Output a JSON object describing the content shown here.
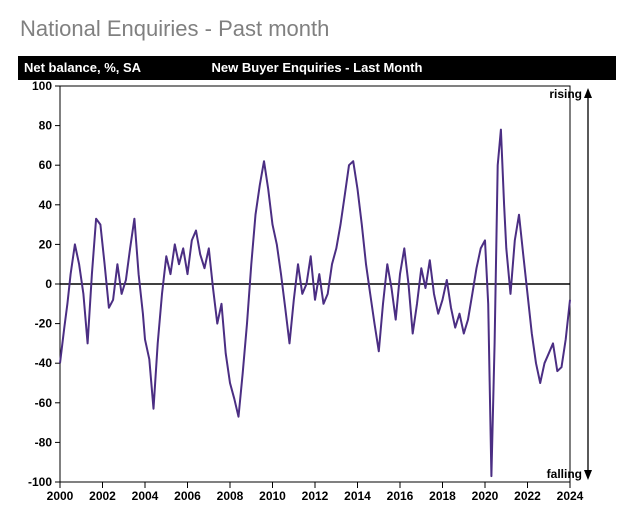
{
  "page_title": "National Enquiries - Past month",
  "chart": {
    "type": "line",
    "title_bar": {
      "left_label": "Net balance, %, SA",
      "center_title": "New Buyer Enquiries - Last Month",
      "bg_color": "#000000",
      "text_color": "#ffffff",
      "fontsize": 13,
      "fontweight": "bold"
    },
    "background_color": "#ffffff",
    "plot_border_color": "#000000",
    "plot_border_width": 1,
    "x": {
      "min": 2000,
      "max": 2024,
      "ticks": [
        2000,
        2002,
        2004,
        2006,
        2008,
        2010,
        2012,
        2014,
        2016,
        2018,
        2020,
        2022,
        2024
      ],
      "label_fontsize": 12,
      "label_fontweight": "bold",
      "tick_color": "#000000",
      "tick_len": 6
    },
    "y": {
      "min": -100,
      "max": 100,
      "ticks": [
        -100,
        -80,
        -60,
        -40,
        -20,
        0,
        20,
        40,
        60,
        80,
        100
      ],
      "label_fontsize": 12,
      "label_fontweight": "bold",
      "zero_line_color": "#000000",
      "zero_line_width": 1.5
    },
    "right_axis": {
      "top_label": "rising",
      "bottom_label": "falling",
      "arrow_color": "#000000",
      "label_fontsize": 12
    },
    "series": {
      "color": "#4b2e83",
      "width": 2,
      "points": [
        [
          2000.0,
          -40
        ],
        [
          2000.2,
          -22
        ],
        [
          2000.35,
          -10
        ],
        [
          2000.5,
          5
        ],
        [
          2000.7,
          20
        ],
        [
          2000.9,
          10
        ],
        [
          2001.1,
          -5
        ],
        [
          2001.3,
          -30
        ],
        [
          2001.5,
          5
        ],
        [
          2001.7,
          33
        ],
        [
          2001.9,
          30
        ],
        [
          2002.1,
          10
        ],
        [
          2002.3,
          -12
        ],
        [
          2002.5,
          -8
        ],
        [
          2002.7,
          10
        ],
        [
          2002.9,
          -5
        ],
        [
          2003.1,
          2
        ],
        [
          2003.3,
          18
        ],
        [
          2003.5,
          33
        ],
        [
          2003.7,
          5
        ],
        [
          2003.9,
          -15
        ],
        [
          2004.0,
          -28
        ],
        [
          2004.2,
          -38
        ],
        [
          2004.4,
          -63
        ],
        [
          2004.6,
          -30
        ],
        [
          2004.8,
          -5
        ],
        [
          2005.0,
          14
        ],
        [
          2005.2,
          5
        ],
        [
          2005.4,
          20
        ],
        [
          2005.6,
          10
        ],
        [
          2005.8,
          18
        ],
        [
          2006.0,
          5
        ],
        [
          2006.2,
          22
        ],
        [
          2006.4,
          27
        ],
        [
          2006.6,
          15
        ],
        [
          2006.8,
          8
        ],
        [
          2007.0,
          18
        ],
        [
          2007.2,
          -2
        ],
        [
          2007.4,
          -20
        ],
        [
          2007.6,
          -10
        ],
        [
          2007.8,
          -35
        ],
        [
          2008.0,
          -50
        ],
        [
          2008.2,
          -58
        ],
        [
          2008.4,
          -67
        ],
        [
          2008.6,
          -45
        ],
        [
          2008.8,
          -20
        ],
        [
          2009.0,
          10
        ],
        [
          2009.2,
          35
        ],
        [
          2009.4,
          50
        ],
        [
          2009.6,
          62
        ],
        [
          2009.8,
          48
        ],
        [
          2010.0,
          30
        ],
        [
          2010.2,
          20
        ],
        [
          2010.4,
          5
        ],
        [
          2010.6,
          -12
        ],
        [
          2010.8,
          -30
        ],
        [
          2011.0,
          -8
        ],
        [
          2011.2,
          10
        ],
        [
          2011.4,
          -5
        ],
        [
          2011.6,
          0
        ],
        [
          2011.8,
          14
        ],
        [
          2012.0,
          -8
        ],
        [
          2012.2,
          5
        ],
        [
          2012.4,
          -10
        ],
        [
          2012.6,
          -5
        ],
        [
          2012.8,
          10
        ],
        [
          2013.0,
          18
        ],
        [
          2013.2,
          30
        ],
        [
          2013.4,
          45
        ],
        [
          2013.6,
          60
        ],
        [
          2013.8,
          62
        ],
        [
          2014.0,
          48
        ],
        [
          2014.2,
          30
        ],
        [
          2014.4,
          10
        ],
        [
          2014.6,
          -5
        ],
        [
          2014.8,
          -20
        ],
        [
          2015.0,
          -34
        ],
        [
          2015.2,
          -10
        ],
        [
          2015.4,
          10
        ],
        [
          2015.6,
          -2
        ],
        [
          2015.8,
          -18
        ],
        [
          2016.0,
          5
        ],
        [
          2016.2,
          18
        ],
        [
          2016.4,
          0
        ],
        [
          2016.6,
          -25
        ],
        [
          2016.8,
          -10
        ],
        [
          2017.0,
          8
        ],
        [
          2017.2,
          -2
        ],
        [
          2017.4,
          12
        ],
        [
          2017.6,
          -5
        ],
        [
          2017.8,
          -15
        ],
        [
          2018.0,
          -8
        ],
        [
          2018.2,
          2
        ],
        [
          2018.4,
          -12
        ],
        [
          2018.6,
          -22
        ],
        [
          2018.8,
          -15
        ],
        [
          2019.0,
          -25
        ],
        [
          2019.2,
          -18
        ],
        [
          2019.4,
          -5
        ],
        [
          2019.6,
          8
        ],
        [
          2019.8,
          18
        ],
        [
          2020.0,
          22
        ],
        [
          2020.15,
          -10
        ],
        [
          2020.3,
          -97
        ],
        [
          2020.45,
          -30
        ],
        [
          2020.6,
          60
        ],
        [
          2020.75,
          78
        ],
        [
          2020.9,
          40
        ],
        [
          2021.0,
          18
        ],
        [
          2021.2,
          -5
        ],
        [
          2021.4,
          22
        ],
        [
          2021.6,
          35
        ],
        [
          2021.8,
          15
        ],
        [
          2022.0,
          -5
        ],
        [
          2022.2,
          -25
        ],
        [
          2022.4,
          -40
        ],
        [
          2022.6,
          -50
        ],
        [
          2022.8,
          -40
        ],
        [
          2023.0,
          -35
        ],
        [
          2023.2,
          -30
        ],
        [
          2023.4,
          -44
        ],
        [
          2023.6,
          -42
        ],
        [
          2023.8,
          -28
        ],
        [
          2024.0,
          -8
        ]
      ]
    }
  }
}
